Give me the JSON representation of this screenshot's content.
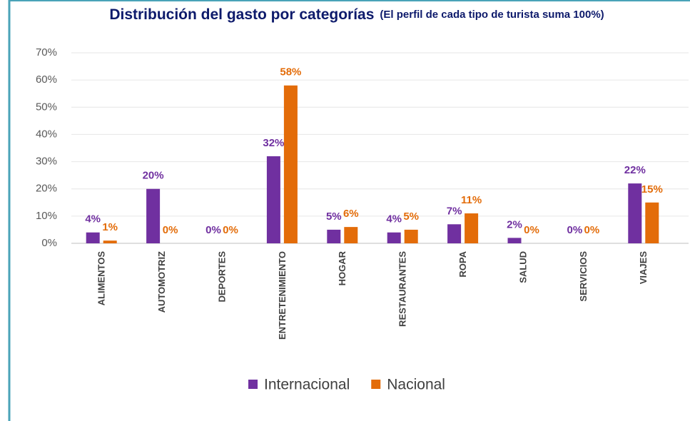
{
  "chart_data": {
    "type": "bar",
    "title": "Distribución del gasto por categorías",
    "subtitle": "(El perfil de cada tipo de turista suma 100%)",
    "categories": [
      "ALIMENTOS",
      "AUTOMOTRIZ",
      "DEPORTES",
      "ENTRETENIMIENTO",
      "HOGAR",
      "RESTAURANTES",
      "ROPA",
      "SALUD",
      "SERVICIOS",
      "VIAJES"
    ],
    "series": [
      {
        "name": "Internacional",
        "color": "#7030a0",
        "values": [
          4,
          20,
          0,
          32,
          5,
          4,
          7,
          2,
          0,
          22
        ],
        "value_labels": [
          "4%",
          "20%",
          "0%",
          "32%",
          "5%",
          "4%",
          "7%",
          "2%",
          "0%",
          "22%"
        ]
      },
      {
        "name": "Nacional",
        "color": "#e36c09",
        "values": [
          1,
          0,
          0,
          58,
          6,
          5,
          11,
          0,
          0,
          15
        ],
        "value_labels": [
          "1%",
          "0%",
          "0%",
          "58%",
          "6%",
          "5%",
          "11%",
          "0%",
          "0%",
          "15%"
        ]
      }
    ],
    "ylim": [
      0,
      70
    ],
    "yticks": [
      {
        "value": 0,
        "label": "0%"
      },
      {
        "value": 10,
        "label": "10%"
      },
      {
        "value": 20,
        "label": "20%"
      },
      {
        "value": 30,
        "label": "30%"
      },
      {
        "value": 40,
        "label": "40%"
      },
      {
        "value": 50,
        "label": "50%"
      },
      {
        "value": 60,
        "label": "60%"
      },
      {
        "value": 70,
        "label": "70%"
      }
    ],
    "grid": true,
    "legend": "bottom"
  }
}
